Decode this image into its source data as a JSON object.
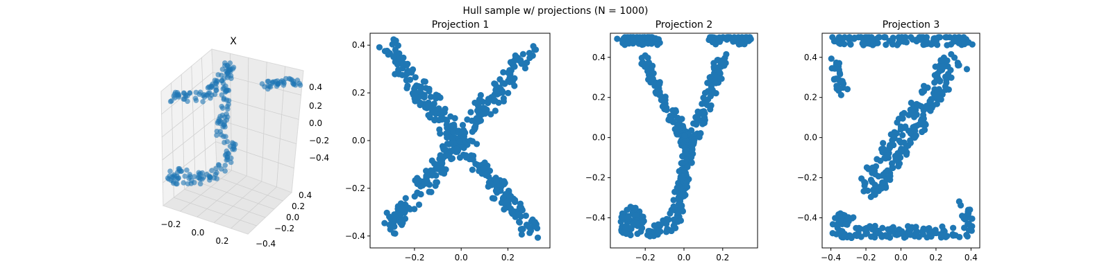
{
  "figure": {
    "title": "Hull sample w/ projections (N = 1000)"
  },
  "colors": {
    "point": "#1f77b4",
    "axes": "#000000",
    "pane": "#f2f2f2"
  },
  "chart_data": [
    {
      "type": "scatter",
      "projection": "3d",
      "title": "X",
      "x_ticks": [
        "−0.2",
        "0.0",
        "0.2"
      ],
      "y_ticks": [
        "0.4",
        "0.2",
        "0.0",
        "−0.2",
        "−0.4"
      ],
      "z_ticks": [
        "0.4",
        "0.2",
        "0.0",
        "−0.2",
        "−0.4"
      ],
      "grid": true
    },
    {
      "type": "scatter",
      "title": "Projection 1",
      "shape": "letter X",
      "xlim": [
        -0.39,
        0.38
      ],
      "ylim": [
        -0.45,
        0.45
      ],
      "xticks": [
        -0.2,
        0.0,
        0.2
      ],
      "yticks": [
        -0.4,
        -0.2,
        0.0,
        0.2,
        0.4
      ],
      "x_ticklabels": [
        "−0.2",
        "0.0",
        "0.2"
      ],
      "y_ticklabels": [
        "−0.4",
        "−0.2",
        "0.0",
        "0.2",
        "0.4"
      ],
      "grid": false
    },
    {
      "type": "scatter",
      "title": "Projection 2",
      "shape": "letter y",
      "xlim": [
        -0.38,
        0.38
      ],
      "ylim": [
        -0.55,
        0.52
      ],
      "xticks": [
        -0.2,
        0.0,
        0.2
      ],
      "yticks": [
        -0.4,
        -0.2,
        0.0,
        0.2,
        0.4
      ],
      "x_ticklabels": [
        "−0.2",
        "0.0",
        "0.2"
      ],
      "y_ticklabels": [
        "−0.4",
        "−0.2",
        "0.0",
        "0.2",
        "0.4"
      ],
      "grid": false
    },
    {
      "type": "scatter",
      "title": "Projection 3",
      "shape": "letter Z",
      "xlim": [
        -0.45,
        0.45
      ],
      "ylim": [
        -0.55,
        0.52
      ],
      "xticks": [
        -0.4,
        -0.2,
        0.0,
        0.2,
        0.4
      ],
      "yticks": [
        -0.4,
        -0.2,
        0.0,
        0.2,
        0.4
      ],
      "x_ticklabels": [
        "−0.4",
        "−0.2",
        "0.0",
        "0.2",
        "0.4"
      ],
      "y_ticklabels": [
        "−0.4",
        "−0.2",
        "0.0",
        "0.2",
        "0.4"
      ],
      "grid": false
    }
  ]
}
